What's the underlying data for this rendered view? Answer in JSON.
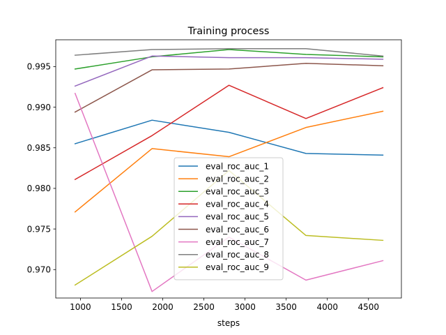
{
  "chart_data": {
    "type": "line",
    "title": "Training process",
    "xlabel": "steps",
    "ylabel": "",
    "xlim": [
      700,
      4900
    ],
    "ylim": [
      0.9665,
      0.9983
    ],
    "xticks": [
      1000,
      1500,
      2000,
      2500,
      3000,
      3500,
      4000,
      4500
    ],
    "yticks": [
      0.97,
      0.975,
      0.98,
      0.985,
      0.99,
      0.995
    ],
    "xtick_labels": [
      "1000",
      "1500",
      "2000",
      "2500",
      "3000",
      "3500",
      "4000",
      "4500"
    ],
    "ytick_labels": [
      "0.970",
      "0.975",
      "0.980",
      "0.985",
      "0.990",
      "0.995"
    ],
    "legend_position": "lower-center",
    "x": [
      935,
      1870,
      2805,
      3740,
      4675
    ],
    "series": [
      {
        "name": "eval_roc_auc_1",
        "color": "#1f77b4",
        "values": [
          0.9855,
          0.9884,
          0.9869,
          0.9843,
          0.9841
        ]
      },
      {
        "name": "eval_roc_auc_2",
        "color": "#ff7f0e",
        "values": [
          0.9771,
          0.9849,
          0.9839,
          0.9875,
          0.9895
        ]
      },
      {
        "name": "eval_roc_auc_3",
        "color": "#2ca02c",
        "values": [
          0.9947,
          0.9962,
          0.9971,
          0.9965,
          0.9962
        ]
      },
      {
        "name": "eval_roc_auc_4",
        "color": "#d62728",
        "values": [
          0.9811,
          0.9865,
          0.9927,
          0.9886,
          0.9924
        ]
      },
      {
        "name": "eval_roc_auc_5",
        "color": "#9467bd",
        "values": [
          0.9926,
          0.9963,
          0.9961,
          0.9961,
          0.9959
        ]
      },
      {
        "name": "eval_roc_auc_6",
        "color": "#8c564b",
        "values": [
          0.9894,
          0.9946,
          0.9947,
          0.9954,
          0.9951
        ]
      },
      {
        "name": "eval_roc_auc_7",
        "color": "#e377c2",
        "values": [
          0.9917,
          0.9673,
          0.974,
          0.9687,
          0.9711
        ]
      },
      {
        "name": "eval_roc_auc_8",
        "color": "#7f7f7f",
        "values": [
          0.9964,
          0.9971,
          0.9972,
          0.9972,
          0.9963
        ]
      },
      {
        "name": "eval_roc_auc_9",
        "color": "#bcbd22",
        "values": [
          0.9681,
          0.9741,
          0.9822,
          0.9742,
          0.9736
        ]
      }
    ]
  }
}
